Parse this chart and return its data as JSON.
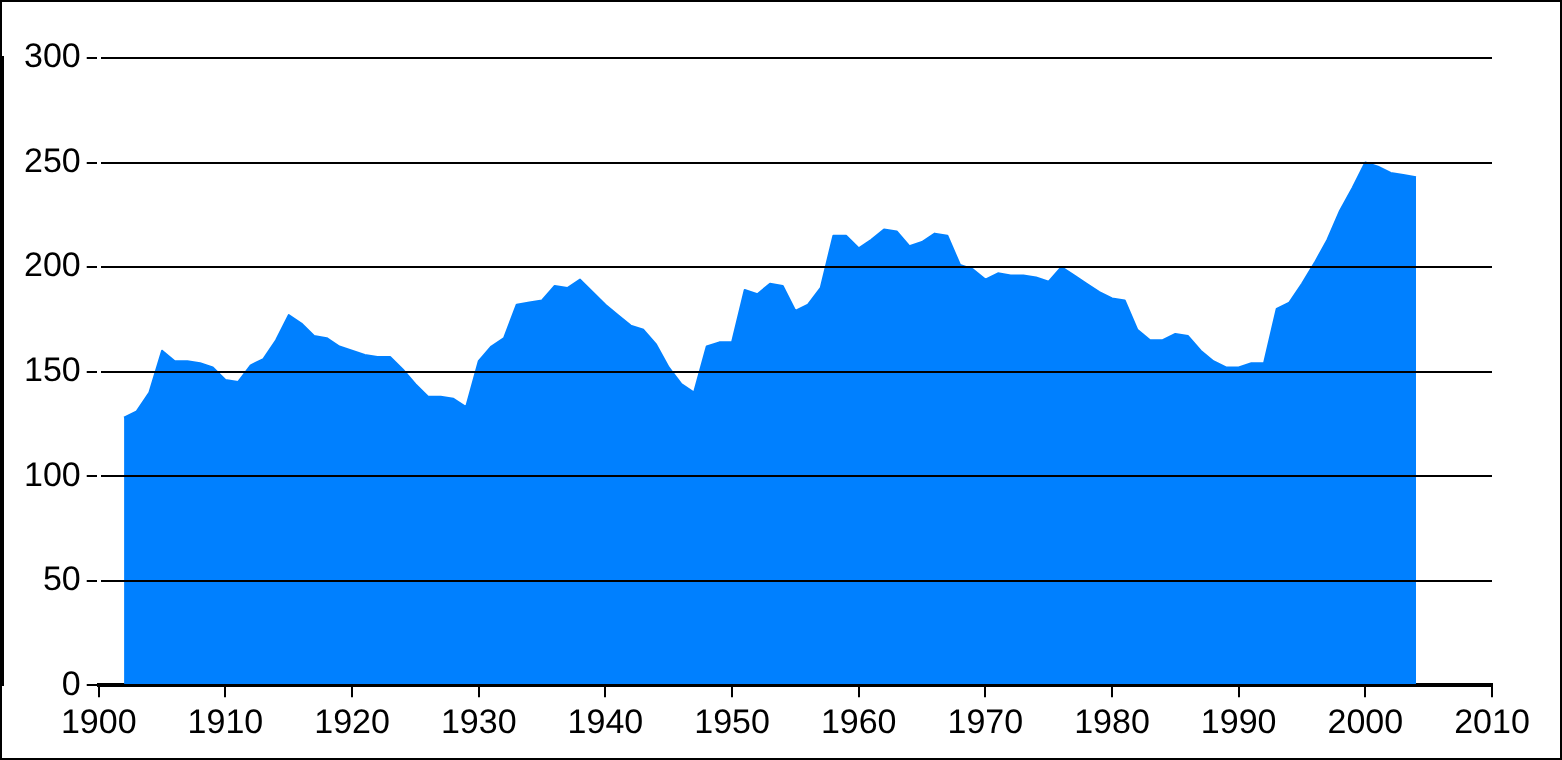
{
  "chart_data": {
    "type": "area",
    "xlim": [
      1900,
      2010
    ],
    "xticks": [
      1900,
      1910,
      1920,
      1930,
      1940,
      1950,
      1960,
      1970,
      1980,
      1990,
      2000,
      2010
    ],
    "ylim": [
      0,
      300
    ],
    "yticks": [
      0,
      50,
      100,
      150,
      200,
      250,
      300
    ],
    "grid": "y",
    "legend": false,
    "x": [
      1902,
      1903,
      1904,
      1905,
      1906,
      1907,
      1908,
      1909,
      1910,
      1911,
      1912,
      1913,
      1914,
      1915,
      1916,
      1917,
      1918,
      1919,
      1920,
      1921,
      1922,
      1923,
      1924,
      1925,
      1926,
      1927,
      1928,
      1929,
      1930,
      1931,
      1932,
      1933,
      1934,
      1935,
      1936,
      1937,
      1938,
      1939,
      1940,
      1941,
      1942,
      1943,
      1944,
      1945,
      1946,
      1947,
      1948,
      1949,
      1950,
      1951,
      1952,
      1953,
      1954,
      1955,
      1956,
      1957,
      1958,
      1959,
      1960,
      1961,
      1962,
      1963,
      1964,
      1965,
      1966,
      1967,
      1968,
      1969,
      1970,
      1971,
      1972,
      1973,
      1974,
      1975,
      1976,
      1977,
      1978,
      1979,
      1980,
      1981,
      1982,
      1983,
      1984,
      1985,
      1986,
      1987,
      1988,
      1989,
      1990,
      1991,
      1992,
      1993,
      1994,
      1995,
      1996,
      1997,
      1998,
      1999,
      2000,
      2001,
      2002,
      2003,
      2004
    ],
    "series": [
      {
        "color": "#0080ff",
        "values": [
          128,
          131,
          140,
          160,
          155,
          155,
          154,
          152,
          146,
          145,
          153,
          156,
          165,
          177,
          173,
          167,
          166,
          162,
          160,
          158,
          157,
          157,
          151,
          144,
          138,
          138,
          137,
          133,
          155,
          162,
          166,
          182,
          183,
          184,
          191,
          190,
          194,
          188,
          182,
          177,
          172,
          170,
          163,
          152,
          144,
          140,
          162,
          164,
          164,
          189,
          187,
          192,
          191,
          179,
          182,
          190,
          215,
          215,
          209,
          213,
          218,
          217,
          210,
          212,
          216,
          215,
          201,
          199,
          194,
          197,
          196,
          196,
          195,
          193,
          200,
          196,
          192,
          188,
          185,
          184,
          170,
          165,
          165,
          168,
          167,
          160,
          155,
          152,
          152,
          154,
          154,
          180,
          183,
          192,
          202,
          213,
          227,
          238,
          250,
          248,
          245,
          244,
          243
        ]
      }
    ]
  }
}
